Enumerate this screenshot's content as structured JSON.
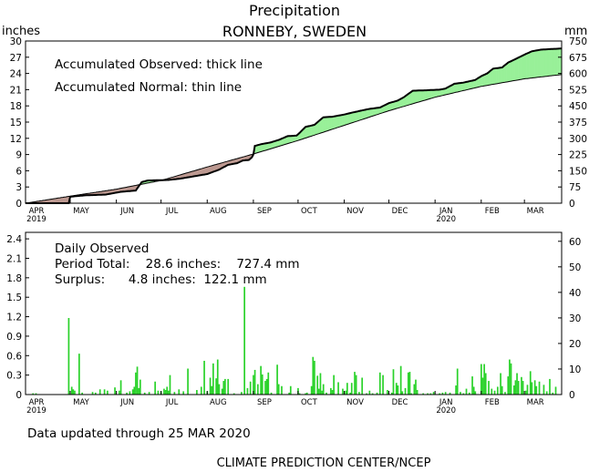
{
  "title": "Precipitation",
  "subtitle": "RONNEBY,  SWEDEN",
  "footer_updated": "Data updated through 25 MAR 2020",
  "footer_credit": "CLIMATE PREDICTION CENTER/NCEP",
  "colors": {
    "surplus": "#98f098",
    "deficit": "#bc9890",
    "bars": "#2ad22a",
    "axis": "#000000"
  },
  "chart_data": [
    {
      "type": "area",
      "left_unit": "inches",
      "right_unit": "mm",
      "annotations": [
        "Accumulated Observed: thick line",
        "Accumulated Normal: thin line"
      ],
      "ylim": [
        0,
        30
      ],
      "ylim_right": [
        0,
        750
      ],
      "y_ticks": [
        "0",
        "3",
        "6",
        "9",
        "12",
        "15",
        "18",
        "21",
        "24",
        "27",
        "30"
      ],
      "y_ticks_right": [
        "0",
        "75",
        "150",
        "225",
        "300",
        "375",
        "450",
        "525",
        "600",
        "675",
        "750"
      ],
      "x_ticks": [
        {
          "label": "APR",
          "sub": "2019",
          "day": 0
        },
        {
          "label": "MAY",
          "sub": "",
          "day": 30
        },
        {
          "label": "JUN",
          "sub": "",
          "day": 61
        },
        {
          "label": "JUL",
          "sub": "",
          "day": 91
        },
        {
          "label": "AUG",
          "sub": "",
          "day": 122
        },
        {
          "label": "SEP",
          "sub": "",
          "day": 153
        },
        {
          "label": "OCT",
          "sub": "",
          "day": 183
        },
        {
          "label": "NOV",
          "sub": "",
          "day": 214
        },
        {
          "label": "DEC",
          "sub": "",
          "day": 244
        },
        {
          "label": "JAN",
          "sub": "2020",
          "day": 275
        },
        {
          "label": "FEB",
          "sub": "",
          "day": 306
        },
        {
          "label": "MAR",
          "sub": "",
          "day": 335
        }
      ],
      "x_end_day": 360,
      "series": [
        {
          "name": "Accumulated Observed",
          "points": [
            [
              0,
              0
            ],
            [
              29,
              0
            ],
            [
              30,
              1.2
            ],
            [
              40,
              1.45
            ],
            [
              54,
              1.6
            ],
            [
              64,
              2.1
            ],
            [
              74,
              2.35
            ],
            [
              78,
              3.9
            ],
            [
              82,
              4.2
            ],
            [
              96,
              4.3
            ],
            [
              104,
              4.55
            ],
            [
              118,
              5.2
            ],
            [
              122,
              5.4
            ],
            [
              130,
              6.2
            ],
            [
              136,
              7.1
            ],
            [
              142,
              7.4
            ],
            [
              146,
              7.9
            ],
            [
              150,
              8.0
            ],
            [
              152,
              8.5
            ],
            [
              153,
              9.0
            ],
            [
              154,
              10.6
            ],
            [
              158,
              10.9
            ],
            [
              164,
              11.2
            ],
            [
              170,
              11.7
            ],
            [
              176,
              12.4
            ],
            [
              182,
              12.5
            ],
            [
              184,
              13.0
            ],
            [
              188,
              14.1
            ],
            [
              194,
              14.5
            ],
            [
              200,
              15.9
            ],
            [
              206,
              16.0
            ],
            [
              214,
              16.4
            ],
            [
              220,
              16.8
            ],
            [
              230,
              17.4
            ],
            [
              238,
              17.7
            ],
            [
              244,
              18.5
            ],
            [
              250,
              19.0
            ],
            [
              254,
              19.6
            ],
            [
              260,
              20.8
            ],
            [
              270,
              20.9
            ],
            [
              278,
              21.0
            ],
            [
              282,
              21.2
            ],
            [
              288,
              22.1
            ],
            [
              294,
              22.3
            ],
            [
              302,
              22.8
            ],
            [
              306,
              23.5
            ],
            [
              310,
              24.0
            ],
            [
              314,
              24.9
            ],
            [
              320,
              25.1
            ],
            [
              324,
              26.0
            ],
            [
              330,
              26.8
            ],
            [
              336,
              27.6
            ],
            [
              340,
              28.1
            ],
            [
              346,
              28.4
            ],
            [
              352,
              28.5
            ],
            [
              359,
              28.6
            ]
          ]
        },
        {
          "name": "Accumulated Normal",
          "points": [
            [
              0,
              0
            ],
            [
              30,
              1.3
            ],
            [
              61,
              2.6
            ],
            [
              91,
              4.2
            ],
            [
              122,
              6.7
            ],
            [
              153,
              9.1
            ],
            [
              183,
              11.6
            ],
            [
              214,
              14.4
            ],
            [
              244,
              17.1
            ],
            [
              275,
              19.6
            ],
            [
              306,
              21.6
            ],
            [
              335,
              23.0
            ],
            [
              360,
              23.8
            ]
          ]
        }
      ]
    },
    {
      "type": "bar",
      "left_unit": "inches",
      "right_unit": "mm",
      "annotations": [
        "Daily Observed",
        "Period Total:    28.6 inches:    727.4 mm",
        "Surplus:      4.8 inches:  122.1 mm"
      ],
      "ylim": [
        0,
        2.5
      ],
      "ylim_right": [
        0,
        63.5
      ],
      "y_ticks": [
        "0",
        "0.3",
        "0.6",
        "0.9",
        "1.2",
        "1.5",
        "1.8",
        "2.1",
        "2.4"
      ],
      "y_ticks_right": [
        "0",
        "10",
        "20",
        "30",
        "40",
        "50",
        "60"
      ],
      "x_ticks": [
        {
          "label": "APR",
          "sub": "2019",
          "day": 0
        },
        {
          "label": "MAY",
          "sub": "",
          "day": 30
        },
        {
          "label": "JUN",
          "sub": "",
          "day": 61
        },
        {
          "label": "JUL",
          "sub": "",
          "day": 91
        },
        {
          "label": "AUG",
          "sub": "",
          "day": 122
        },
        {
          "label": "SEP",
          "sub": "",
          "day": 153
        },
        {
          "label": "OCT",
          "sub": "",
          "day": 183
        },
        {
          "label": "NOV",
          "sub": "",
          "day": 214
        },
        {
          "label": "DEC",
          "sub": "",
          "day": 244
        },
        {
          "label": "JAN",
          "sub": "2020",
          "day": 275
        },
        {
          "label": "FEB",
          "sub": "",
          "day": 306
        },
        {
          "label": "MAR",
          "sub": "",
          "day": 335
        }
      ],
      "x_end_day": 360,
      "series": [
        {
          "name": "Daily Observed",
          "points": [
            [
              5,
              0.02
            ],
            [
              7,
              0.02
            ],
            [
              29,
              1.18
            ],
            [
              31,
              0.12
            ],
            [
              32,
              0.08
            ],
            [
              33,
              0.06
            ],
            [
              36,
              0.63
            ],
            [
              38,
              0.03
            ],
            [
              45,
              0.04
            ],
            [
              47,
              0.03
            ],
            [
              50,
              0.08
            ],
            [
              53,
              0.08
            ],
            [
              55,
              0.06
            ],
            [
              60,
              0.11
            ],
            [
              63,
              0.06
            ],
            [
              64,
              0.22
            ],
            [
              68,
              0.03
            ],
            [
              70,
              0.05
            ],
            [
              72,
              0.08
            ],
            [
              73,
              0.12
            ],
            [
              74,
              0.34
            ],
            [
              75,
              0.43
            ],
            [
              76,
              0.1
            ],
            [
              77,
              0.23
            ],
            [
              80,
              0.03
            ],
            [
              83,
              0.04
            ],
            [
              87,
              0.2
            ],
            [
              89,
              0.06
            ],
            [
              91,
              0.05
            ],
            [
              93,
              0.09
            ],
            [
              94,
              0.07
            ],
            [
              95,
              0.12
            ],
            [
              96,
              0.06
            ],
            [
              97,
              0.3
            ],
            [
              100,
              0.04
            ],
            [
              103,
              0.08
            ],
            [
              106,
              0.05
            ],
            [
              109,
              0.4
            ],
            [
              115,
              0.07
            ],
            [
              118,
              0.12
            ],
            [
              120,
              0.52
            ],
            [
              122,
              0.05
            ],
            [
              124,
              0.26
            ],
            [
              125,
              0.13
            ],
            [
              126,
              0.48
            ],
            [
              128,
              0.25
            ],
            [
              129,
              0.54
            ],
            [
              130,
              0.16
            ],
            [
              132,
              0.09
            ],
            [
              133,
              0.21
            ],
            [
              134,
              0.24
            ],
            [
              136,
              0.24
            ],
            [
              140,
              0.02
            ],
            [
              145,
              0.04
            ],
            [
              147,
              1.66
            ],
            [
              149,
              0.1
            ],
            [
              151,
              0.2
            ],
            [
              153,
              0.3
            ],
            [
              154,
              0.38
            ],
            [
              156,
              0.16
            ],
            [
              158,
              0.44
            ],
            [
              159,
              0.31
            ],
            [
              161,
              0.21
            ],
            [
              162,
              0.24
            ],
            [
              163,
              0.34
            ],
            [
              165,
              0.03
            ],
            [
              169,
              0.46
            ],
            [
              170,
              0.16
            ],
            [
              172,
              0.13
            ],
            [
              177,
              0.03
            ],
            [
              178,
              0.13
            ],
            [
              183,
              0.1
            ],
            [
              184,
              0.02
            ],
            [
              188,
              0.02
            ],
            [
              189,
              0.03
            ],
            [
              192,
              0.13
            ],
            [
              193,
              0.58
            ],
            [
              194,
              0.52
            ],
            [
              196,
              0.29
            ],
            [
              197,
              0.09
            ],
            [
              198,
              0.33
            ],
            [
              199,
              0.06
            ],
            [
              200,
              0.16
            ],
            [
              202,
              0.03
            ],
            [
              205,
              0.1
            ],
            [
              206,
              0.07
            ],
            [
              207,
              0.3
            ],
            [
              210,
              0.19
            ],
            [
              213,
              0.09
            ],
            [
              215,
              0.06
            ],
            [
              216,
              0.18
            ],
            [
              218,
              0.03
            ],
            [
              219,
              0.18
            ],
            [
              221,
              0.35
            ],
            [
              222,
              0.3
            ],
            [
              224,
              0.04
            ],
            [
              226,
              0.26
            ],
            [
              229,
              0.02
            ],
            [
              231,
              0.06
            ],
            [
              233,
              0.02
            ],
            [
              236,
              0.03
            ],
            [
              238,
              0.34
            ],
            [
              240,
              0.3
            ],
            [
              243,
              0.07
            ],
            [
              246,
              0.03
            ],
            [
              247,
              0.39
            ],
            [
              249,
              0.18
            ],
            [
              250,
              0.14
            ],
            [
              252,
              0.44
            ],
            [
              253,
              0.05
            ],
            [
              255,
              0.1
            ],
            [
              257,
              0.34
            ],
            [
              258,
              0.35
            ],
            [
              259,
              0.02
            ],
            [
              261,
              0.16
            ],
            [
              262,
              0.23
            ],
            [
              263,
              0.07
            ],
            [
              267,
              0.02
            ],
            [
              270,
              0.02
            ],
            [
              272,
              0.02
            ],
            [
              274,
              0.04
            ],
            [
              278,
              0.02
            ],
            [
              280,
              0.03
            ],
            [
              282,
              0.04
            ],
            [
              285,
              0.03
            ],
            [
              289,
              0.14
            ],
            [
              290,
              0.4
            ],
            [
              292,
              0.04
            ],
            [
              294,
              0.02
            ],
            [
              296,
              0.09
            ],
            [
              298,
              0.03
            ],
            [
              300,
              0.28
            ],
            [
              301,
              0.12
            ],
            [
              302,
              0.05
            ],
            [
              306,
              0.47
            ],
            [
              307,
              0.26
            ],
            [
              308,
              0.47
            ],
            [
              309,
              0.33
            ],
            [
              311,
              0.21
            ],
            [
              313,
              0.09
            ],
            [
              315,
              0.06
            ],
            [
              317,
              0.12
            ],
            [
              319,
              0.33
            ],
            [
              320,
              0.13
            ],
            [
              322,
              0.04
            ],
            [
              324,
              0.28
            ],
            [
              325,
              0.54
            ],
            [
              326,
              0.48
            ],
            [
              328,
              0.14
            ],
            [
              329,
              0.22
            ],
            [
              330,
              0.33
            ],
            [
              331,
              0.21
            ],
            [
              333,
              0.27
            ],
            [
              334,
              0.21
            ],
            [
              336,
              0.06
            ],
            [
              337,
              0.15
            ],
            [
              339,
              0.36
            ],
            [
              340,
              0.19
            ],
            [
              342,
              0.22
            ],
            [
              343,
              0.13
            ],
            [
              345,
              0.2
            ],
            [
              348,
              0.15
            ],
            [
              350,
              0.05
            ],
            [
              352,
              0.24
            ],
            [
              354,
              0.03
            ],
            [
              356,
              0.12
            ]
          ]
        }
      ]
    }
  ]
}
